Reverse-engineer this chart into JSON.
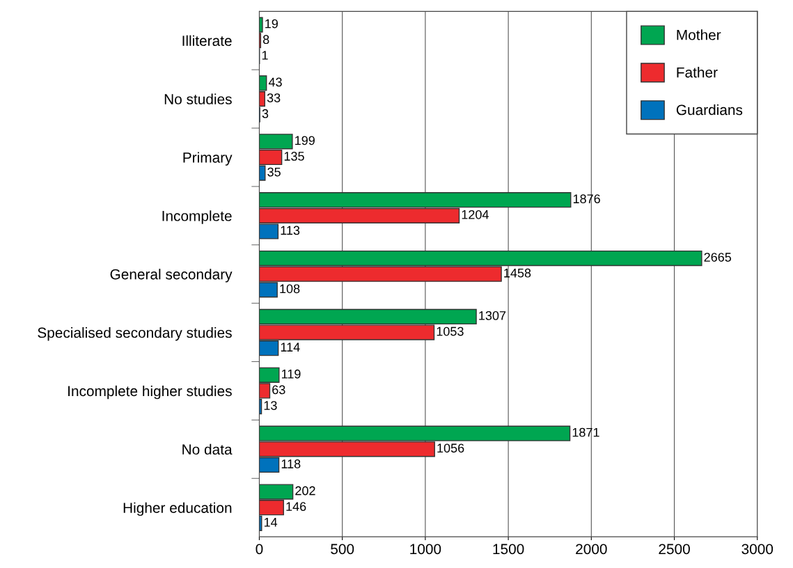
{
  "chart_data": {
    "type": "bar",
    "orientation": "horizontal",
    "categories": [
      "Illiterate",
      "No studies",
      "Primary",
      "Incomplete",
      "General secondary",
      "Specialised secondary studies",
      "Incomplete higher studies",
      "No data",
      "Higher education"
    ],
    "series": [
      {
        "name": "Mother",
        "color": "#00a651",
        "values": [
          19,
          43,
          199,
          1876,
          2665,
          1307,
          119,
          1871,
          202
        ]
      },
      {
        "name": "Father",
        "color": "#ed2b2e",
        "values": [
          8,
          33,
          135,
          1204,
          1458,
          1053,
          63,
          1056,
          146
        ]
      },
      {
        "name": "Guardians",
        "color": "#0072bc",
        "values": [
          1,
          3,
          35,
          113,
          108,
          114,
          13,
          118,
          14
        ]
      }
    ],
    "xlim": [
      0,
      3000
    ],
    "xticks": [
      0,
      500,
      1000,
      1500,
      2000,
      2500,
      3000
    ],
    "grid": "x",
    "legend": "top right",
    "data_labels": true
  }
}
